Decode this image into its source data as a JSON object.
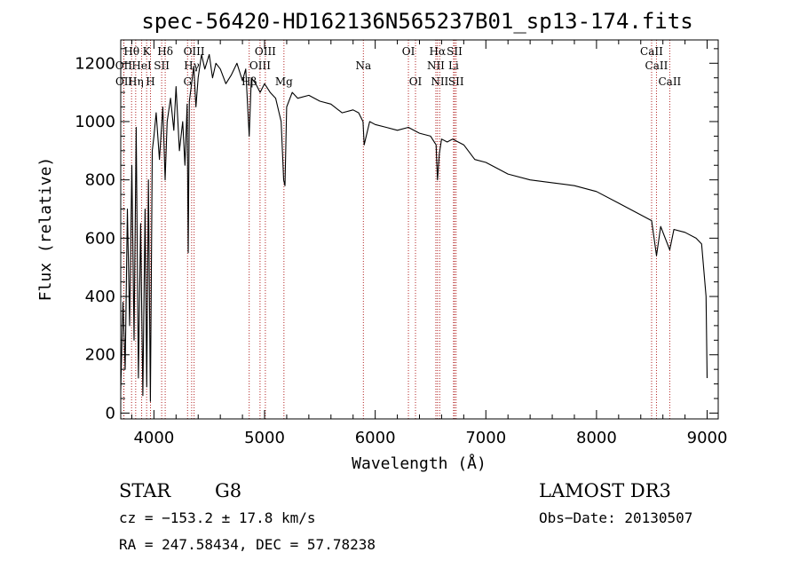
{
  "chart_data": {
    "type": "line",
    "title": "spec-56420-HD162136N565237B01_sp13-174.fits",
    "xlabel": "Wavelength (Å)",
    "ylabel": "Flux (relative)",
    "xlim": [
      3700,
      9100
    ],
    "ylim": [
      -20,
      1280
    ],
    "xticks": [
      4000,
      5000,
      6000,
      7000,
      8000,
      9000
    ],
    "xtick_labels": [
      "4000",
      "5000",
      "6000",
      "7000",
      "8000",
      "9000"
    ],
    "yticks": [
      0,
      200,
      400,
      600,
      800,
      1000,
      1200
    ],
    "ytick_labels": [
      "0",
      "200",
      "400",
      "600",
      "800",
      "1000",
      "1200"
    ],
    "grid": false,
    "series": [
      {
        "x": [
          3700,
          3720,
          3740,
          3760,
          3780,
          3800,
          3820,
          3840,
          3860,
          3880,
          3900,
          3920,
          3935,
          3950,
          3968,
          3985,
          4000,
          4020,
          4050,
          4080,
          4101,
          4120,
          4150,
          4180,
          4200,
          4230,
          4260,
          4280,
          4300,
          4310,
          4320,
          4340,
          4360,
          4380,
          4400,
          4430,
          4460,
          4500,
          4530,
          4560,
          4600,
          4650,
          4700,
          4750,
          4800,
          4830,
          4861,
          4880,
          4920,
          4960,
          5000,
          5050,
          5100,
          5150,
          5172,
          5184,
          5200,
          5250,
          5300,
          5400,
          5500,
          5600,
          5700,
          5800,
          5850,
          5890,
          5900,
          5950,
          6000,
          6100,
          6200,
          6300,
          6400,
          6500,
          6550,
          6563,
          6580,
          6600,
          6650,
          6700,
          6800,
          6900,
          7000,
          7100,
          7200,
          7400,
          7600,
          7800,
          8000,
          8200,
          8400,
          8498,
          8542,
          8580,
          8662,
          8700,
          8800,
          8900,
          8950,
          8990,
          9000
        ],
        "y": [
          80,
          380,
          150,
          700,
          300,
          850,
          250,
          980,
          120,
          650,
          60,
          700,
          90,
          800,
          40,
          900,
          950,
          1030,
          870,
          1050,
          800,
          1000,
          1080,
          970,
          1120,
          900,
          1000,
          850,
          1060,
          550,
          1070,
          1130,
          1190,
          1050,
          1150,
          1230,
          1180,
          1230,
          1150,
          1200,
          1180,
          1130,
          1160,
          1200,
          1140,
          1180,
          950,
          1150,
          1130,
          1100,
          1130,
          1100,
          1080,
          1000,
          800,
          780,
          1050,
          1100,
          1080,
          1090,
          1070,
          1060,
          1030,
          1040,
          1030,
          1000,
          920,
          1000,
          990,
          980,
          970,
          980,
          960,
          950,
          920,
          800,
          890,
          940,
          930,
          940,
          920,
          870,
          860,
          840,
          820,
          800,
          790,
          780,
          760,
          720,
          680,
          660,
          540,
          640,
          560,
          630,
          620,
          600,
          580,
          400,
          120
        ]
      }
    ],
    "lines": [
      {
        "name": "Hθ",
        "x": 3798,
        "row": 1
      },
      {
        "name": "OII",
        "x": 3727,
        "row": 2
      },
      {
        "name": "OII",
        "x": 3729,
        "row": 3
      },
      {
        "name": "Hη",
        "x": 3835,
        "row": 3
      },
      {
        "name": "HeI",
        "x": 3889,
        "row": 2
      },
      {
        "name": "K",
        "x": 3934,
        "row": 1
      },
      {
        "name": "H",
        "x": 3969,
        "row": 3
      },
      {
        "name": "SII",
        "x": 4070,
        "row": 2
      },
      {
        "name": "Hδ",
        "x": 4102,
        "row": 1
      },
      {
        "name": "OIII",
        "x": 4363,
        "row": 1
      },
      {
        "name": "Hγ",
        "x": 4341,
        "row": 2
      },
      {
        "name": "G",
        "x": 4304,
        "row": 3
      },
      {
        "name": "Hβ",
        "x": 4861,
        "row": 3
      },
      {
        "name": "OIII",
        "x": 5007,
        "row": 1
      },
      {
        "name": "OIII",
        "x": 4959,
        "row": 2
      },
      {
        "name": "Mg",
        "x": 5175,
        "row": 3
      },
      {
        "name": "Na",
        "x": 5893,
        "row": 2
      },
      {
        "name": "OI",
        "x": 6300,
        "row": 1
      },
      {
        "name": "OI",
        "x": 6364,
        "row": 3
      },
      {
        "name": "Hα",
        "x": 6563,
        "row": 1
      },
      {
        "name": "NII",
        "x": 6548,
        "row": 2
      },
      {
        "name": "NII",
        "x": 6583,
        "row": 3
      },
      {
        "name": "SII",
        "x": 6717,
        "row": 1
      },
      {
        "name": "Li",
        "x": 6708,
        "row": 2
      },
      {
        "name": "SII",
        "x": 6731,
        "row": 3
      },
      {
        "name": "CaII",
        "x": 8498,
        "row": 1
      },
      {
        "name": "CaII",
        "x": 8542,
        "row": 2
      },
      {
        "name": "CaII",
        "x": 8662,
        "row": 3
      }
    ]
  },
  "footer": {
    "object_class": "STAR",
    "subclass": "G8",
    "survey": "LAMOST DR3",
    "cz": "cz = −153.2 ± 17.8 km/s",
    "obs_date": "Obs−Date: 20130507",
    "coords": "RA = 247.58434, DEC =  57.78238"
  },
  "colors": {
    "spectrum": "#000000",
    "marker_lines": "#b22222"
  }
}
